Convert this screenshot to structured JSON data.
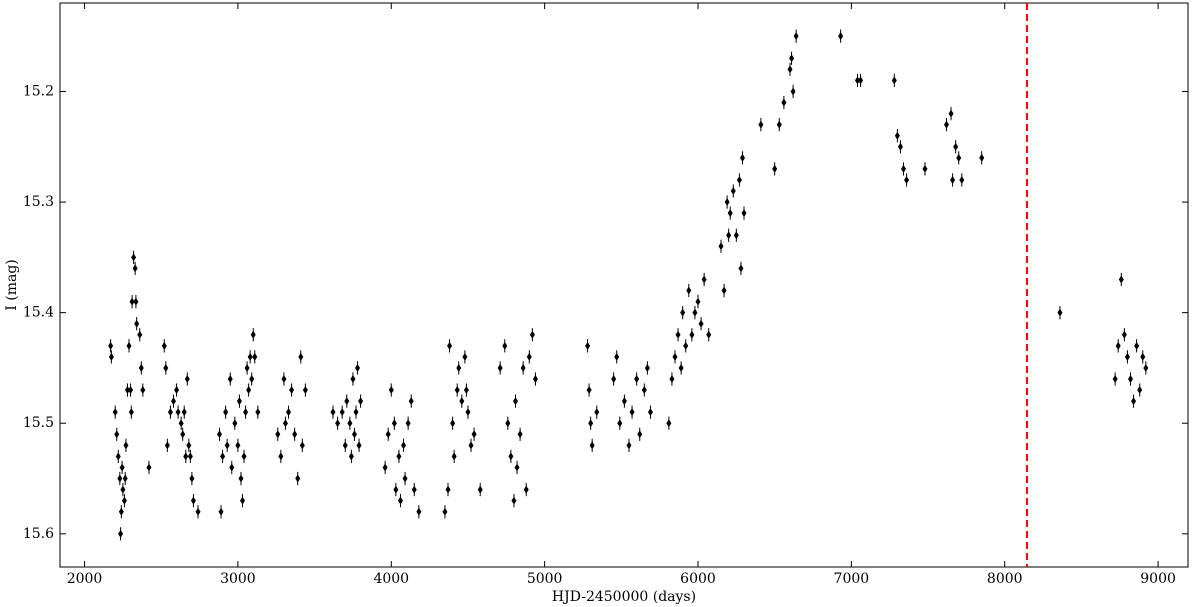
{
  "chart_data": {
    "type": "scatter",
    "xlabel": "HJD-2450000 (days)",
    "ylabel": "I (mag)",
    "xlim": [
      1840,
      9195
    ],
    "ylim": [
      15.12,
      15.63
    ],
    "invert_y": true,
    "xticks": [
      2000,
      3000,
      4000,
      5000,
      6000,
      7000,
      8000,
      9000
    ],
    "yticks": [
      15.2,
      15.3,
      15.4,
      15.5,
      15.6
    ],
    "color": "#000000",
    "yerr": 0.006,
    "vline": {
      "x": 8145,
      "color": "#ff0000"
    },
    "x": [
      2170,
      2175,
      2200,
      2210,
      2220,
      2230,
      2235,
      2240,
      2245,
      2250,
      2260,
      2265,
      2270,
      2280,
      2290,
      2300,
      2305,
      2310,
      2320,
      2330,
      2335,
      2340,
      2360,
      2370,
      2380,
      2420,
      2520,
      2530,
      2540,
      2560,
      2580,
      2600,
      2610,
      2630,
      2640,
      2650,
      2660,
      2670,
      2680,
      2690,
      2700,
      2710,
      2740,
      2880,
      2890,
      2900,
      2920,
      2930,
      2950,
      2960,
      2980,
      3000,
      3010,
      3020,
      3030,
      3040,
      3050,
      3060,
      3070,
      3080,
      3090,
      3100,
      3110,
      3130,
      3260,
      3280,
      3300,
      3310,
      3330,
      3350,
      3370,
      3390,
      3410,
      3420,
      3440,
      3620,
      3650,
      3680,
      3700,
      3710,
      3730,
      3740,
      3750,
      3760,
      3770,
      3780,
      3790,
      3800,
      3960,
      3980,
      4000,
      4020,
      4030,
      4050,
      4060,
      4080,
      4090,
      4110,
      4130,
      4150,
      4180,
      4350,
      4370,
      4380,
      4400,
      4410,
      4430,
      4440,
      4460,
      4480,
      4490,
      4500,
      4520,
      4540,
      4580,
      4710,
      4740,
      4760,
      4780,
      4800,
      4810,
      4820,
      4840,
      4860,
      4880,
      4900,
      4920,
      4940,
      5280,
      5290,
      5300,
      5310,
      5340,
      5450,
      5470,
      5490,
      5520,
      5550,
      5570,
      5600,
      5620,
      5650,
      5670,
      5690,
      5810,
      5830,
      5850,
      5870,
      5890,
      5900,
      5920,
      5940,
      5960,
      5980,
      6000,
      6020,
      6040,
      6070,
      6150,
      6170,
      6190,
      6200,
      6210,
      6230,
      6250,
      6270,
      6280,
      6290,
      6300,
      6410,
      6500,
      6530,
      6560,
      6600,
      6610,
      6620,
      6640,
      6930,
      7040,
      7060,
      7280,
      7300,
      7320,
      7340,
      7360,
      7480,
      7620,
      7650,
      7660,
      7680,
      7700,
      7720,
      7850,
      8360,
      8720,
      8740,
      8760,
      8780,
      8800,
      8820,
      8840,
      8860,
      8880,
      8900,
      8920
    ],
    "values": [
      15.43,
      15.44,
      15.49,
      15.51,
      15.53,
      15.55,
      15.6,
      15.58,
      15.54,
      15.56,
      15.57,
      15.55,
      15.52,
      15.47,
      15.43,
      15.47,
      15.49,
      15.39,
      15.35,
      15.36,
      15.39,
      15.41,
      15.42,
      15.45,
      15.47,
      15.54,
      15.43,
      15.45,
      15.52,
      15.49,
      15.48,
      15.47,
      15.49,
      15.5,
      15.51,
      15.49,
      15.53,
      15.46,
      15.52,
      15.53,
      15.55,
      15.57,
      15.58,
      15.51,
      15.58,
      15.53,
      15.49,
      15.52,
      15.46,
      15.54,
      15.5,
      15.52,
      15.48,
      15.55,
      15.57,
      15.53,
      15.49,
      15.45,
      15.47,
      15.44,
      15.46,
      15.42,
      15.44,
      15.49,
      15.51,
      15.53,
      15.46,
      15.5,
      15.49,
      15.47,
      15.51,
      15.55,
      15.44,
      15.52,
      15.47,
      15.49,
      15.5,
      15.49,
      15.52,
      15.48,
      15.5,
      15.53,
      15.46,
      15.51,
      15.49,
      15.45,
      15.52,
      15.48,
      15.54,
      15.51,
      15.47,
      15.5,
      15.56,
      15.53,
      15.57,
      15.52,
      15.55,
      15.5,
      15.48,
      15.56,
      15.58,
      15.58,
      15.56,
      15.43,
      15.5,
      15.53,
      15.47,
      15.45,
      15.48,
      15.44,
      15.47,
      15.49,
      15.52,
      15.51,
      15.56,
      15.45,
      15.43,
      15.5,
      15.53,
      15.57,
      15.48,
      15.54,
      15.51,
      15.45,
      15.56,
      15.44,
      15.42,
      15.46,
      15.43,
      15.47,
      15.5,
      15.52,
      15.49,
      15.46,
      15.44,
      15.5,
      15.48,
      15.52,
      15.49,
      15.46,
      15.51,
      15.47,
      15.45,
      15.49,
      15.5,
      15.46,
      15.44,
      15.42,
      15.45,
      15.4,
      15.43,
      15.38,
      15.42,
      15.4,
      15.39,
      15.41,
      15.37,
      15.42,
      15.34,
      15.38,
      15.3,
      15.33,
      15.31,
      15.29,
      15.33,
      15.28,
      15.36,
      15.26,
      15.31,
      15.23,
      15.27,
      15.23,
      15.21,
      15.18,
      15.17,
      15.2,
      15.15,
      15.15,
      15.19,
      15.19,
      15.19,
      15.24,
      15.25,
      15.27,
      15.28,
      15.27,
      15.23,
      15.22,
      15.28,
      15.25,
      15.26,
      15.28,
      15.26,
      15.4,
      15.46,
      15.43,
      15.37,
      15.42,
      15.44,
      15.46,
      15.48,
      15.43,
      15.47,
      15.44,
      15.45
    ]
  }
}
